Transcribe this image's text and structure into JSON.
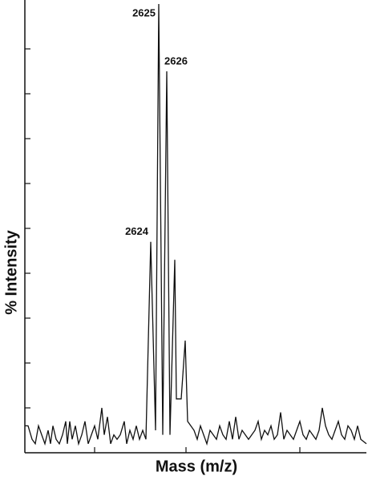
{
  "chart_data": {
    "type": "line",
    "xlabel": "Mass (m/z)",
    "ylabel": "% Intensity",
    "x": [
      2608.3,
      2608.7,
      2609.2,
      2609.6,
      2610.0,
      2610.4,
      2610.8,
      2611.2,
      2611.5,
      2611.8,
      2612.2,
      2612.6,
      2613.0,
      2613.4,
      2613.6,
      2613.9,
      2614.2,
      2614.6,
      2615.0,
      2615.4,
      2615.8,
      2616.2,
      2616.6,
      2617.0,
      2617.4,
      2617.9,
      2618.2,
      2618.6,
      2619.0,
      2619.4,
      2619.8,
      2620.2,
      2620.7,
      2621.0,
      2621.4,
      2621.8,
      2622.2,
      2622.6,
      2623.0,
      2623.4,
      2624.0,
      2624.6,
      2625.0,
      2625.5,
      2626.0,
      2626.4,
      2627.0,
      2627.2,
      2627.8,
      2628.3,
      2628.6,
      2629.0,
      2629.4,
      2629.8,
      2630.2,
      2630.6,
      2631.0,
      2631.4,
      2631.8,
      2632.2,
      2632.6,
      2633.0,
      2633.4,
      2633.8,
      2634.2,
      2634.6,
      2635.0,
      2635.4,
      2635.8,
      2636.2,
      2636.6,
      2637.0,
      2637.4,
      2637.8,
      2638.2,
      2638.6,
      2639.0,
      2639.4,
      2639.8,
      2640.2,
      2640.6,
      2641.0,
      2641.4,
      2641.8,
      2642.2,
      2642.6,
      2643.0,
      2643.4,
      2643.8,
      2644.2,
      2644.6,
      2645.0,
      2645.4,
      2645.8,
      2646.2,
      2646.6,
      2647.0,
      2647.4,
      2647.8,
      2648.2,
      2648.6,
      2649.0,
      2649.4,
      2649.8,
      2650.2,
      2650.9
    ],
    "series": [
      {
        "color": "#111111",
        "values": [
          6,
          6,
          3,
          2,
          6,
          4,
          2,
          5,
          2,
          6,
          3,
          2,
          4,
          7,
          2,
          7,
          3,
          6,
          2,
          4,
          7,
          2,
          4,
          6,
          3,
          10,
          4,
          8,
          2,
          4,
          3,
          4,
          7,
          2,
          5,
          3,
          6,
          3,
          5,
          3,
          47,
          5,
          100,
          4,
          85,
          4,
          43,
          12,
          12,
          25,
          7,
          6,
          5,
          3,
          6,
          4,
          2,
          5,
          4,
          3,
          6,
          4,
          3,
          7,
          3,
          8,
          3,
          5,
          4,
          3,
          4,
          5,
          7,
          3,
          5,
          4,
          6,
          3,
          4,
          9,
          3,
          5,
          4,
          3,
          5,
          7,
          4,
          3,
          5,
          4,
          3,
          5,
          10,
          6,
          4,
          3,
          5,
          7,
          4,
          3,
          6,
          5,
          3,
          6,
          3,
          2
        ]
      }
    ],
    "annotations": [
      {
        "text": "2624",
        "x": 2624.0,
        "y": 47
      },
      {
        "text": "2625",
        "x": 2625.0,
        "y": 100
      },
      {
        "text": "2626",
        "x": 2626.0,
        "y": 85
      }
    ],
    "xlim": [
      2608.3,
      2650.9
    ],
    "ylim": [
      0,
      100
    ],
    "xticks": [
      2617,
      2628.4,
      2642.6
    ],
    "yticks": [
      10,
      20,
      30,
      40,
      50,
      60,
      70,
      80,
      90
    ],
    "tick_labels": false
  }
}
